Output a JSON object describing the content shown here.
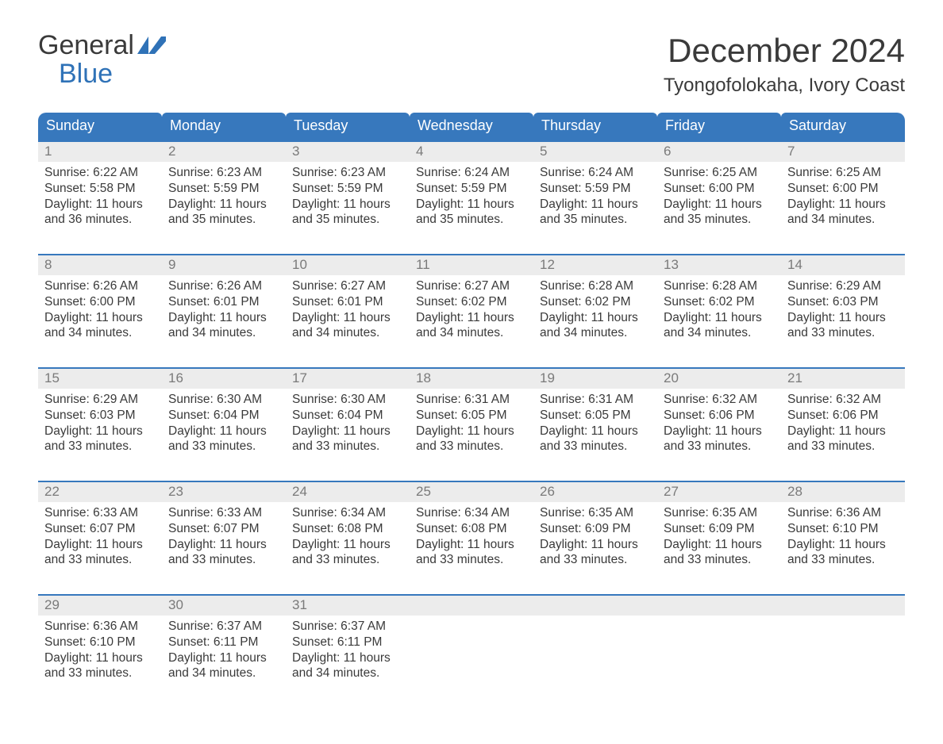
{
  "logo": {
    "word1": "General",
    "word2": "Blue",
    "text_color": "#3a3a3a",
    "accent_color": "#2f72b7"
  },
  "title": "December 2024",
  "location": "Tyongofolokaha, Ivory Coast",
  "colors": {
    "header_bg": "#3778bd",
    "header_text": "#ffffff",
    "week_rule": "#3778bd",
    "daynum_bg": "#ececec",
    "daynum_text": "#7a7a7a",
    "body_text": "#3a3a3a",
    "page_bg": "#ffffff"
  },
  "day_headers": [
    "Sunday",
    "Monday",
    "Tuesday",
    "Wednesday",
    "Thursday",
    "Friday",
    "Saturday"
  ],
  "weeks": [
    [
      {
        "day": 1,
        "sunrise": "6:22 AM",
        "sunset": "5:58 PM",
        "daylight": "11 hours and 36 minutes."
      },
      {
        "day": 2,
        "sunrise": "6:23 AM",
        "sunset": "5:59 PM",
        "daylight": "11 hours and 35 minutes."
      },
      {
        "day": 3,
        "sunrise": "6:23 AM",
        "sunset": "5:59 PM",
        "daylight": "11 hours and 35 minutes."
      },
      {
        "day": 4,
        "sunrise": "6:24 AM",
        "sunset": "5:59 PM",
        "daylight": "11 hours and 35 minutes."
      },
      {
        "day": 5,
        "sunrise": "6:24 AM",
        "sunset": "5:59 PM",
        "daylight": "11 hours and 35 minutes."
      },
      {
        "day": 6,
        "sunrise": "6:25 AM",
        "sunset": "6:00 PM",
        "daylight": "11 hours and 35 minutes."
      },
      {
        "day": 7,
        "sunrise": "6:25 AM",
        "sunset": "6:00 PM",
        "daylight": "11 hours and 34 minutes."
      }
    ],
    [
      {
        "day": 8,
        "sunrise": "6:26 AM",
        "sunset": "6:00 PM",
        "daylight": "11 hours and 34 minutes."
      },
      {
        "day": 9,
        "sunrise": "6:26 AM",
        "sunset": "6:01 PM",
        "daylight": "11 hours and 34 minutes."
      },
      {
        "day": 10,
        "sunrise": "6:27 AM",
        "sunset": "6:01 PM",
        "daylight": "11 hours and 34 minutes."
      },
      {
        "day": 11,
        "sunrise": "6:27 AM",
        "sunset": "6:02 PM",
        "daylight": "11 hours and 34 minutes."
      },
      {
        "day": 12,
        "sunrise": "6:28 AM",
        "sunset": "6:02 PM",
        "daylight": "11 hours and 34 minutes."
      },
      {
        "day": 13,
        "sunrise": "6:28 AM",
        "sunset": "6:02 PM",
        "daylight": "11 hours and 34 minutes."
      },
      {
        "day": 14,
        "sunrise": "6:29 AM",
        "sunset": "6:03 PM",
        "daylight": "11 hours and 33 minutes."
      }
    ],
    [
      {
        "day": 15,
        "sunrise": "6:29 AM",
        "sunset": "6:03 PM",
        "daylight": "11 hours and 33 minutes."
      },
      {
        "day": 16,
        "sunrise": "6:30 AM",
        "sunset": "6:04 PM",
        "daylight": "11 hours and 33 minutes."
      },
      {
        "day": 17,
        "sunrise": "6:30 AM",
        "sunset": "6:04 PM",
        "daylight": "11 hours and 33 minutes."
      },
      {
        "day": 18,
        "sunrise": "6:31 AM",
        "sunset": "6:05 PM",
        "daylight": "11 hours and 33 minutes."
      },
      {
        "day": 19,
        "sunrise": "6:31 AM",
        "sunset": "6:05 PM",
        "daylight": "11 hours and 33 minutes."
      },
      {
        "day": 20,
        "sunrise": "6:32 AM",
        "sunset": "6:06 PM",
        "daylight": "11 hours and 33 minutes."
      },
      {
        "day": 21,
        "sunrise": "6:32 AM",
        "sunset": "6:06 PM",
        "daylight": "11 hours and 33 minutes."
      }
    ],
    [
      {
        "day": 22,
        "sunrise": "6:33 AM",
        "sunset": "6:07 PM",
        "daylight": "11 hours and 33 minutes."
      },
      {
        "day": 23,
        "sunrise": "6:33 AM",
        "sunset": "6:07 PM",
        "daylight": "11 hours and 33 minutes."
      },
      {
        "day": 24,
        "sunrise": "6:34 AM",
        "sunset": "6:08 PM",
        "daylight": "11 hours and 33 minutes."
      },
      {
        "day": 25,
        "sunrise": "6:34 AM",
        "sunset": "6:08 PM",
        "daylight": "11 hours and 33 minutes."
      },
      {
        "day": 26,
        "sunrise": "6:35 AM",
        "sunset": "6:09 PM",
        "daylight": "11 hours and 33 minutes."
      },
      {
        "day": 27,
        "sunrise": "6:35 AM",
        "sunset": "6:09 PM",
        "daylight": "11 hours and 33 minutes."
      },
      {
        "day": 28,
        "sunrise": "6:36 AM",
        "sunset": "6:10 PM",
        "daylight": "11 hours and 33 minutes."
      }
    ],
    [
      {
        "day": 29,
        "sunrise": "6:36 AM",
        "sunset": "6:10 PM",
        "daylight": "11 hours and 33 minutes."
      },
      {
        "day": 30,
        "sunrise": "6:37 AM",
        "sunset": "6:11 PM",
        "daylight": "11 hours and 34 minutes."
      },
      {
        "day": 31,
        "sunrise": "6:37 AM",
        "sunset": "6:11 PM",
        "daylight": "11 hours and 34 minutes."
      },
      null,
      null,
      null,
      null
    ]
  ],
  "labels": {
    "sunrise": "Sunrise:",
    "sunset": "Sunset:",
    "daylight": "Daylight:"
  }
}
